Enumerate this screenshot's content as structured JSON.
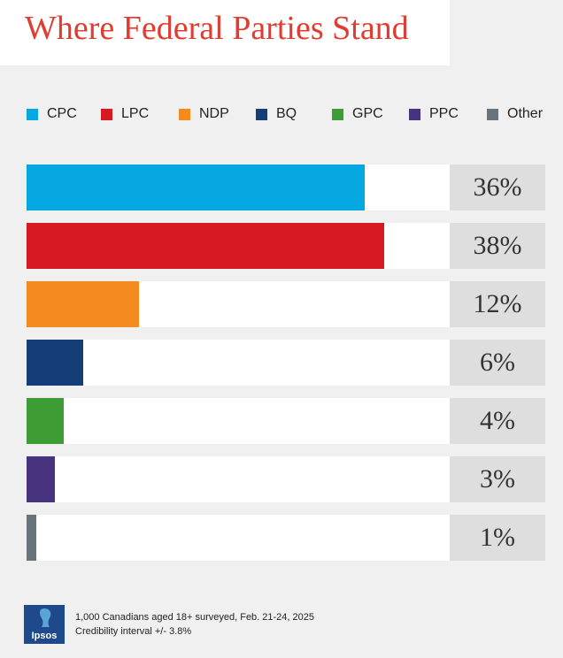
{
  "title": "Where Federal Parties Stand",
  "colors": {
    "CPC": "#05a8e0",
    "LPC": "#d71a21",
    "NDP": "#f58a1f",
    "BQ": "#153e78",
    "GPC": "#3e9c35",
    "PPC": "#48347e",
    "Other": "#68737b"
  },
  "legend": [
    "CPC",
    "LPC",
    "NDP",
    "BQ",
    "GPC",
    "PPC",
    "Other"
  ],
  "chart_data": {
    "type": "bar",
    "orientation": "horizontal",
    "categories": [
      "CPC",
      "LPC",
      "NDP",
      "BQ",
      "GPC",
      "PPC",
      "Other"
    ],
    "values": [
      36,
      38,
      12,
      6,
      4,
      3,
      1
    ],
    "value_labels": [
      "36%",
      "38%",
      "12%",
      "6%",
      "4%",
      "3%",
      "1%"
    ],
    "title": "Where Federal Parties Stand",
    "xlabel": "",
    "ylabel": "",
    "xlim": [
      0,
      45
    ],
    "legend_position": "top",
    "grid": false
  },
  "footer": {
    "logo_text": "Ipsos",
    "note1": "1,000 Canadians aged 18+ surveyed, Feb. 21-24, 2025",
    "note2": "Credibility interval +/- 3.8%"
  }
}
